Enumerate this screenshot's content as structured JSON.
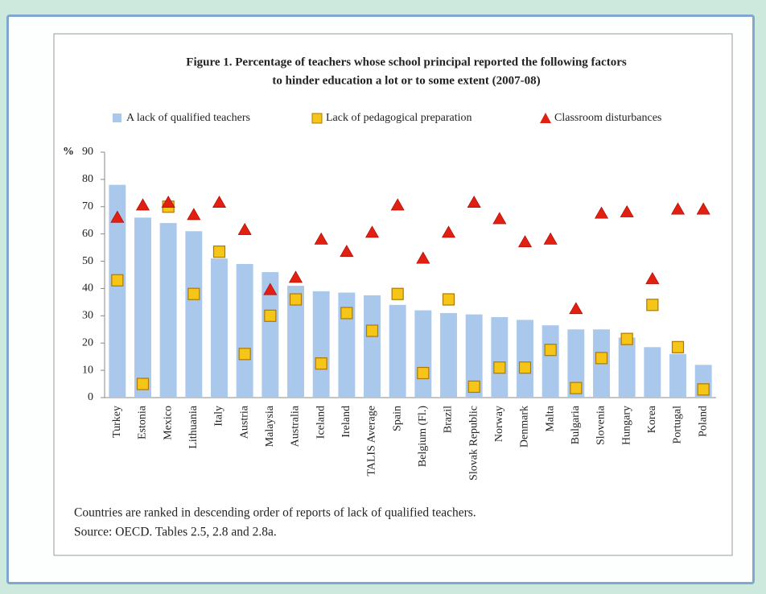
{
  "chart_data": {
    "type": "bar",
    "title": "Figure 1. Percentage of teachers whose school principal reported the following factors",
    "subtitle": "to hinder education  a lot or to some extent (2007-08)",
    "y_label": "%",
    "notes": [
      "Countries are ranked in descending order of reports of lack of qualified teachers.",
      "Source: OECD. Tables 2.5, 2.8 and 2.8a."
    ],
    "categories": [
      "Turkey",
      "Estonia",
      "Mexico",
      "Lithuania",
      "Italy",
      "Austria",
      "Malaysia",
      "Australia",
      "Iceland",
      "Ireland",
      "TALIS Average",
      "Spain",
      "Belgium (Fl.)",
      "Brazil",
      "Slovak Republic",
      "Norway",
      "Denmark",
      "Malta",
      "Bulgaria",
      "Slovenia",
      "Hungary",
      "Korea",
      "Portugal",
      "Poland"
    ],
    "series": [
      {
        "name": "A lack of qualified teachers",
        "marker": "bar",
        "color": "#a9c8ec",
        "values": [
          78,
          66,
          64,
          61,
          51,
          49,
          46,
          41,
          39,
          38.5,
          37.5,
          34,
          32,
          31,
          30.5,
          29.5,
          28.5,
          26.5,
          25,
          25,
          22,
          18.5,
          16,
          12
        ]
      },
      {
        "name": "Lack of pedagogical preparation",
        "marker": "square",
        "color": "#f5c518",
        "values": [
          43,
          5,
          70,
          38,
          53.5,
          16,
          30,
          36,
          12.5,
          31,
          24.5,
          38,
          9,
          36,
          4,
          11,
          11,
          17.5,
          3.5,
          14.5,
          21.5,
          34,
          18.5,
          3
        ]
      },
      {
        "name": "Classroom disturbances",
        "marker": "triangle",
        "color": "#e02010",
        "values": [
          66,
          70.5,
          71.5,
          67,
          71.5,
          61.5,
          39.5,
          44,
          58,
          53.5,
          60.5,
          70.5,
          51,
          60.5,
          71.5,
          65.5,
          57,
          58,
          32.5,
          67.5,
          68,
          43.5,
          69,
          69
        ]
      }
    ],
    "ylim": [
      0,
      90
    ],
    "yticks": [
      0,
      10,
      20,
      30,
      40,
      50,
      60,
      70,
      80,
      90
    ],
    "grid": false
  }
}
